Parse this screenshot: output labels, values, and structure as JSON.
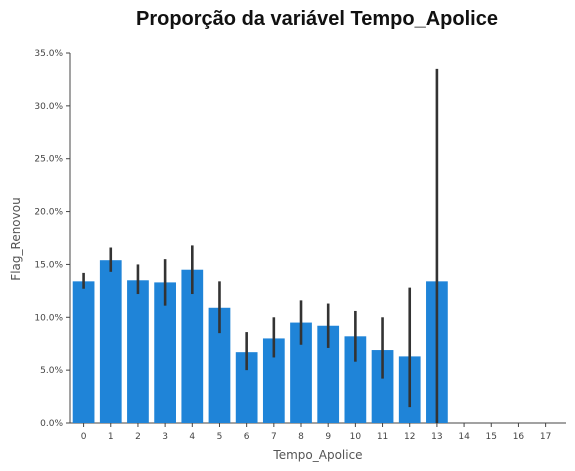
{
  "chart_data": {
    "type": "bar",
    "title": "Proporção da variável Tempo_Apolice",
    "xlabel": "Tempo_Apolice",
    "ylabel": "Flag_Renovou",
    "categories": [
      "0",
      "1",
      "2",
      "3",
      "4",
      "5",
      "6",
      "7",
      "8",
      "9",
      "10",
      "11",
      "12",
      "13",
      "14",
      "15",
      "16",
      "17"
    ],
    "values": [
      0.134,
      0.154,
      0.135,
      0.133,
      0.145,
      0.109,
      0.067,
      0.08,
      0.095,
      0.092,
      0.082,
      0.069,
      0.063,
      0.134,
      0.0,
      0.0,
      0.0,
      0.0
    ],
    "error_low": [
      0.127,
      0.143,
      0.122,
      0.111,
      0.122,
      0.085,
      0.05,
      0.062,
      0.074,
      0.071,
      0.058,
      0.042,
      0.015,
      0.0,
      null,
      null,
      null,
      null
    ],
    "error_high": [
      0.142,
      0.166,
      0.15,
      0.155,
      0.168,
      0.134,
      0.086,
      0.1,
      0.116,
      0.113,
      0.106,
      0.1,
      0.128,
      0.335,
      null,
      null,
      null,
      null
    ],
    "y_ticks": [
      "0.0%",
      "5.0%",
      "10.0%",
      "15.0%",
      "20.0%",
      "25.0%",
      "30.0%",
      "35.0%"
    ],
    "y_tick_values": [
      0,
      0.05,
      0.1,
      0.15,
      0.2,
      0.25,
      0.3,
      0.35
    ],
    "ylim": [
      0,
      0.35
    ],
    "grid": false,
    "colors": {
      "bar": "#1f84d8",
      "error_bar": "#333333",
      "axis": "#444444"
    }
  }
}
